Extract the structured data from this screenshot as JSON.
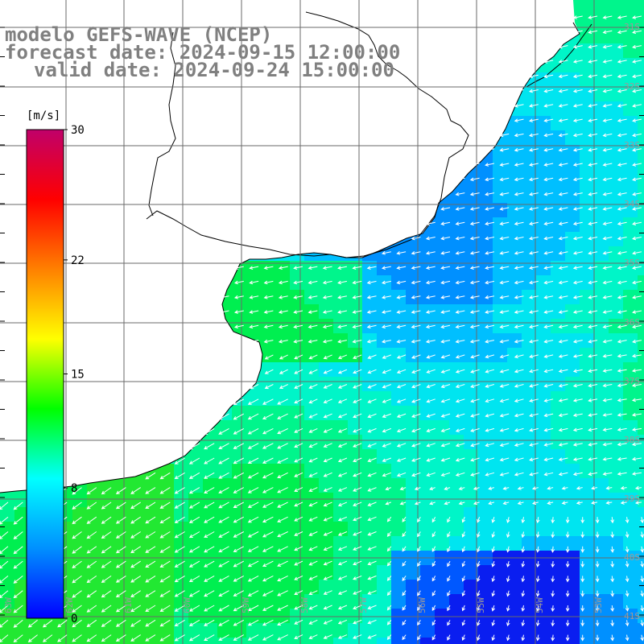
{
  "title": {
    "line1": "modelo GEFS-WAVE (NCEP)",
    "line2": "forecast date: 2024-09-15 12:00:00",
    "line3": "valid date: 2024-09-24 15:00:00"
  },
  "colorbar": {
    "unit_label": "[m/s]",
    "ticks": [
      {
        "label": "30",
        "value": 30
      },
      {
        "label": "22",
        "value": 22
      },
      {
        "label": "15",
        "value": 15
      },
      {
        "label": "8",
        "value": 8
      },
      {
        "label": "0",
        "value": 0
      }
    ],
    "gradient_colors": [
      "#0000ff",
      "#0090ff",
      "#00ffff",
      "#00ff00",
      "#ffff00",
      "#ff8000",
      "#ff0000",
      "#c0006a"
    ]
  },
  "map": {
    "lat_labels": [
      "31S",
      "32S",
      "33S",
      "34S",
      "35S",
      "36S",
      "37S",
      "38S",
      "39S",
      "40S",
      "41S"
    ],
    "lon_labels": [
      "63W",
      "62W",
      "61W",
      "60W",
      "59W",
      "58W",
      "57W",
      "56W",
      "55W",
      "54W",
      "53W"
    ],
    "land_color": "#ffffff",
    "coast_color": "#000000",
    "grid_color": "#6a6a6a",
    "arrow_color": "#ffffff"
  }
}
